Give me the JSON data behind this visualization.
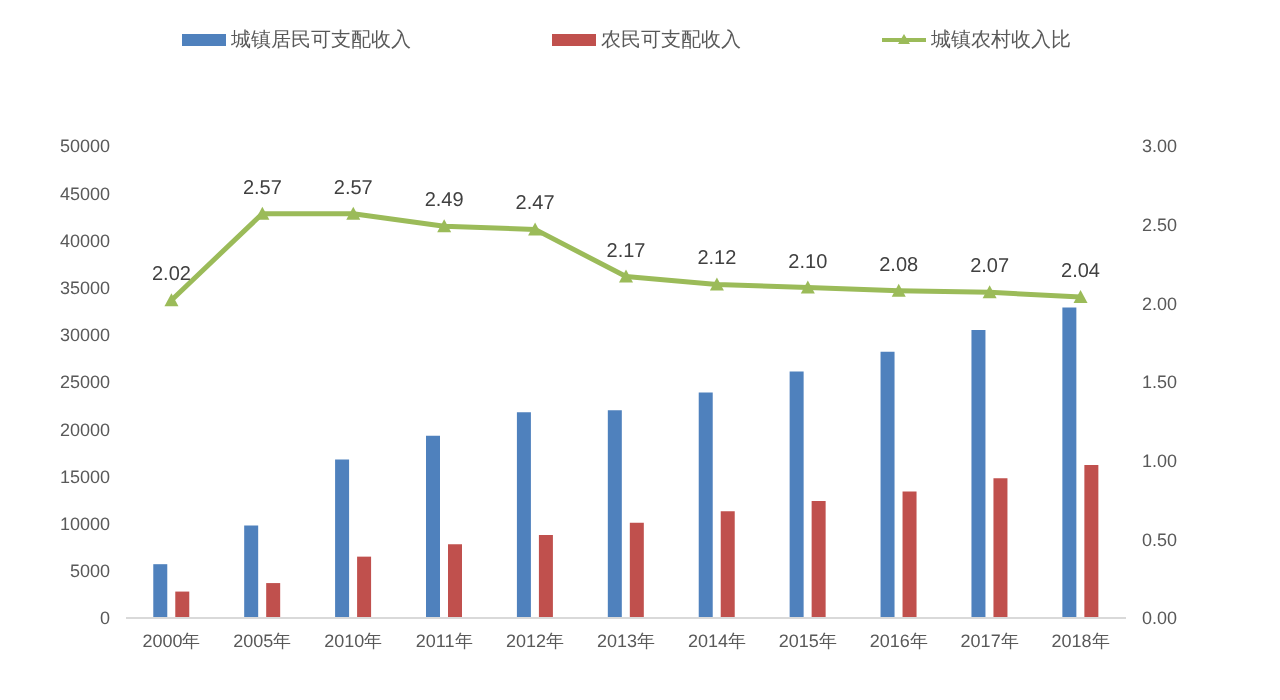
{
  "chart_data": {
    "type": "bar",
    "categories": [
      "2000年",
      "2005年",
      "2010年",
      "2011年",
      "2012年",
      "2013年",
      "2014年",
      "2015年",
      "2016年",
      "2017年",
      "2018年"
    ],
    "series": [
      {
        "name": "城镇居民可支配收入",
        "color": "#4f81bd",
        "values": [
          5700,
          9800,
          16800,
          19300,
          21800,
          22000,
          23900,
          26100,
          28200,
          30500,
          32900
        ]
      },
      {
        "name": "农民可支配收入",
        "color": "#c0504d",
        "values": [
          2800,
          3700,
          6500,
          7800,
          8800,
          10100,
          11300,
          12400,
          13400,
          14800,
          16200
        ]
      },
      {
        "name": "城镇农村收入比",
        "type": "line",
        "axis": "y2",
        "color": "#9bbb59",
        "marker": "triangle",
        "value_labels": [
          "2.02",
          "2.57",
          "2.57",
          "2.49",
          "2.47",
          "2.17",
          "2.12",
          "2.10",
          "2.08",
          "2.07",
          "2.04"
        ],
        "values": [
          2.02,
          2.57,
          2.57,
          2.49,
          2.47,
          2.17,
          2.12,
          2.1,
          2.08,
          2.07,
          2.04
        ]
      }
    ],
    "ylim": [
      0,
      50000
    ],
    "yticks": [
      0,
      5000,
      10000,
      15000,
      20000,
      25000,
      30000,
      35000,
      40000,
      45000,
      50000
    ],
    "y2lim": [
      0,
      3
    ],
    "y2ticks": [
      {
        "value": 0,
        "label": "0.00"
      },
      {
        "value": 0.5,
        "label": "0.50"
      },
      {
        "value": 1,
        "label": "1.00"
      },
      {
        "value": 1.5,
        "label": "1.50"
      },
      {
        "value": 2,
        "label": "2.00"
      },
      {
        "value": 2.5,
        "label": "2.50"
      },
      {
        "value": 3,
        "label": "3.00"
      }
    ],
    "grid": false,
    "legend": "top"
  }
}
